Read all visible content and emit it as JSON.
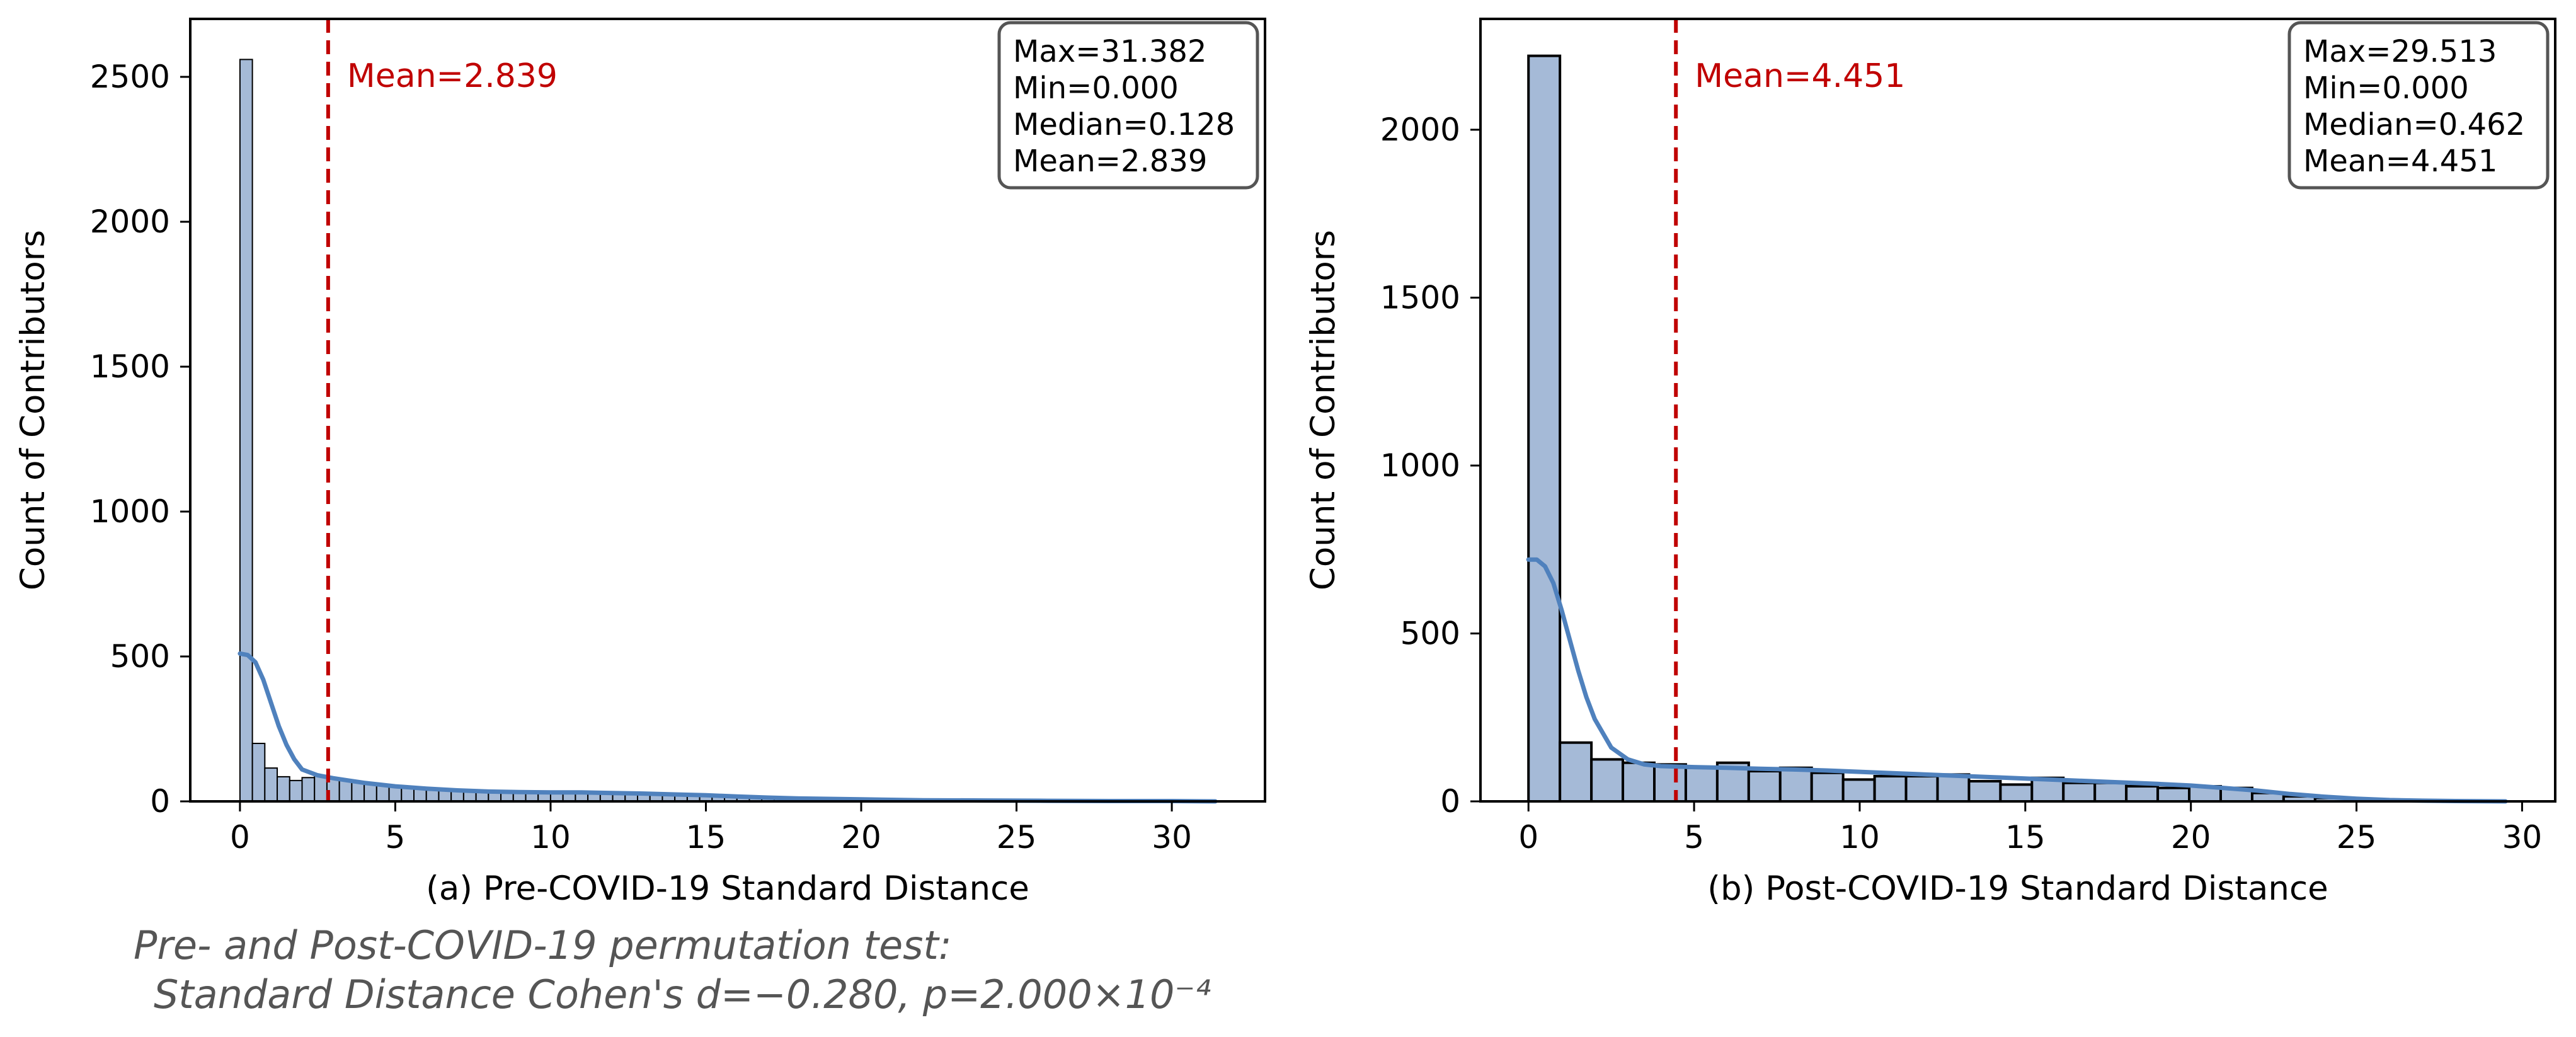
{
  "chart_data": [
    {
      "type": "histogram",
      "xlabel": "(a) Pre-COVID-19 Standard Distance",
      "ylabel": "Count of Contributors",
      "xlim": [
        -1.6,
        33
      ],
      "ylim": [
        0,
        2700
      ],
      "xticks": [
        0,
        5,
        10,
        15,
        20,
        25,
        30
      ],
      "yticks": [
        0,
        500,
        1000,
        1500,
        2000,
        2500
      ],
      "bin_width": 0.4,
      "bins": [
        {
          "start": 0.0,
          "count": 2560
        },
        {
          "start": 0.4,
          "count": 200
        },
        {
          "start": 0.8,
          "count": 115
        },
        {
          "start": 1.2,
          "count": 85
        },
        {
          "start": 1.6,
          "count": 72
        },
        {
          "start": 2.0,
          "count": 82
        },
        {
          "start": 2.4,
          "count": 88
        },
        {
          "start": 2.8,
          "count": 78
        },
        {
          "start": 3.2,
          "count": 72
        },
        {
          "start": 3.6,
          "count": 66
        },
        {
          "start": 4.0,
          "count": 60
        },
        {
          "start": 4.4,
          "count": 55
        },
        {
          "start": 4.8,
          "count": 50
        },
        {
          "start": 5.2,
          "count": 46
        },
        {
          "start": 5.6,
          "count": 43
        },
        {
          "start": 6.0,
          "count": 40
        },
        {
          "start": 6.4,
          "count": 38
        },
        {
          "start": 6.8,
          "count": 36
        },
        {
          "start": 7.2,
          "count": 34
        },
        {
          "start": 7.6,
          "count": 33
        },
        {
          "start": 8.0,
          "count": 32
        },
        {
          "start": 8.4,
          "count": 31
        },
        {
          "start": 8.8,
          "count": 30
        },
        {
          "start": 9.2,
          "count": 30
        },
        {
          "start": 9.6,
          "count": 30
        },
        {
          "start": 10.0,
          "count": 30
        },
        {
          "start": 10.4,
          "count": 30
        },
        {
          "start": 10.8,
          "count": 29
        },
        {
          "start": 11.2,
          "count": 28
        },
        {
          "start": 11.6,
          "count": 27
        },
        {
          "start": 12.0,
          "count": 26
        },
        {
          "start": 12.4,
          "count": 25
        },
        {
          "start": 12.8,
          "count": 24
        },
        {
          "start": 13.2,
          "count": 23
        },
        {
          "start": 13.6,
          "count": 22
        },
        {
          "start": 14.0,
          "count": 21
        },
        {
          "start": 14.4,
          "count": 20
        },
        {
          "start": 14.8,
          "count": 18
        },
        {
          "start": 15.2,
          "count": 17
        },
        {
          "start": 15.6,
          "count": 15
        },
        {
          "start": 16.0,
          "count": 13
        },
        {
          "start": 16.4,
          "count": 12
        },
        {
          "start": 16.8,
          "count": 10
        },
        {
          "start": 17.2,
          "count": 9
        },
        {
          "start": 17.6,
          "count": 8
        },
        {
          "start": 18.0,
          "count": 7
        },
        {
          "start": 18.4,
          "count": 6
        },
        {
          "start": 18.8,
          "count": 6
        },
        {
          "start": 19.2,
          "count": 5
        },
        {
          "start": 19.6,
          "count": 5
        },
        {
          "start": 20.0,
          "count": 4
        },
        {
          "start": 20.4,
          "count": 4
        },
        {
          "start": 20.8,
          "count": 3
        },
        {
          "start": 21.2,
          "count": 3
        },
        {
          "start": 21.6,
          "count": 3
        },
        {
          "start": 22.0,
          "count": 2
        },
        {
          "start": 22.4,
          "count": 2
        },
        {
          "start": 22.8,
          "count": 2
        },
        {
          "start": 23.2,
          "count": 2
        },
        {
          "start": 23.6,
          "count": 1
        },
        {
          "start": 24.0,
          "count": 1
        },
        {
          "start": 24.4,
          "count": 1
        },
        {
          "start": 24.8,
          "count": 1
        },
        {
          "start": 25.2,
          "count": 1
        },
        {
          "start": 25.6,
          "count": 1
        },
        {
          "start": 26.0,
          "count": 1
        },
        {
          "start": 26.4,
          "count": 1
        },
        {
          "start": 26.8,
          "count": 1
        },
        {
          "start": 27.2,
          "count": 1
        },
        {
          "start": 27.6,
          "count": 1
        },
        {
          "start": 28.0,
          "count": 1
        },
        {
          "start": 28.4,
          "count": 1
        },
        {
          "start": 28.8,
          "count": 0
        },
        {
          "start": 29.2,
          "count": 0
        },
        {
          "start": 29.6,
          "count": 0
        },
        {
          "start": 30.0,
          "count": 0
        },
        {
          "start": 30.4,
          "count": 0
        },
        {
          "start": 30.8,
          "count": 1
        }
      ],
      "kde": {
        "x": [
          0,
          0.25,
          0.5,
          0.75,
          1,
          1.25,
          1.5,
          1.75,
          2,
          2.5,
          3,
          3.5,
          4,
          5,
          6,
          7,
          8,
          9,
          10,
          11,
          12,
          13,
          14,
          15,
          16,
          17,
          18,
          20,
          22,
          24,
          26,
          28,
          30,
          31.4
        ],
        "y": [
          510,
          505,
          480,
          420,
          340,
          260,
          195,
          145,
          110,
          90,
          80,
          72,
          64,
          52,
          44,
          38,
          34,
          32,
          31,
          31,
          29,
          27,
          24,
          21,
          17,
          13,
          10,
          7,
          4,
          3,
          2,
          1,
          1,
          0
        ]
      },
      "mean_line": {
        "x": 2.839,
        "label": "Mean=2.839"
      },
      "stats": [
        "Max=31.382",
        "Min=0.000",
        "Median=0.128",
        "Mean=2.839"
      ],
      "bar_color": "#a5bad7",
      "kde_color": "#4f81bd",
      "mean_color": "#c00000"
    },
    {
      "type": "histogram",
      "xlabel": "(b) Post-COVID-19 Standard Distance",
      "ylabel": "Count of Contributors",
      "xlim": [
        -1.45,
        31
      ],
      "ylim": [
        0,
        2330
      ],
      "xticks": [
        0,
        5,
        10,
        15,
        20,
        25,
        30
      ],
      "yticks": [
        0,
        500,
        1000,
        1500,
        2000
      ],
      "bin_width": 0.95,
      "bins": [
        {
          "start": 0.0,
          "count": 2220
        },
        {
          "start": 0.95,
          "count": 175
        },
        {
          "start": 1.9,
          "count": 125
        },
        {
          "start": 2.85,
          "count": 115
        },
        {
          "start": 3.8,
          "count": 110
        },
        {
          "start": 4.75,
          "count": 100
        },
        {
          "start": 5.7,
          "count": 115
        },
        {
          "start": 6.65,
          "count": 90
        },
        {
          "start": 7.6,
          "count": 100
        },
        {
          "start": 8.55,
          "count": 85
        },
        {
          "start": 9.5,
          "count": 65
        },
        {
          "start": 10.45,
          "count": 75
        },
        {
          "start": 11.4,
          "count": 75
        },
        {
          "start": 12.35,
          "count": 80
        },
        {
          "start": 13.3,
          "count": 60
        },
        {
          "start": 14.25,
          "count": 50
        },
        {
          "start": 15.2,
          "count": 70
        },
        {
          "start": 16.15,
          "count": 55
        },
        {
          "start": 17.1,
          "count": 55
        },
        {
          "start": 18.05,
          "count": 45
        },
        {
          "start": 19.0,
          "count": 40
        },
        {
          "start": 19.95,
          "count": 45
        },
        {
          "start": 20.9,
          "count": 40
        },
        {
          "start": 21.85,
          "count": 25
        },
        {
          "start": 22.8,
          "count": 15
        },
        {
          "start": 23.75,
          "count": 10
        },
        {
          "start": 24.7,
          "count": 5
        },
        {
          "start": 25.65,
          "count": 3
        },
        {
          "start": 26.6,
          "count": 2
        },
        {
          "start": 27.55,
          "count": 1
        },
        {
          "start": 28.5,
          "count": 1
        }
      ],
      "kde": {
        "x": [
          0,
          0.25,
          0.5,
          0.75,
          1,
          1.25,
          1.5,
          1.75,
          2,
          2.5,
          3,
          3.5,
          4,
          5,
          6,
          7,
          8,
          9,
          10,
          11,
          12,
          13,
          14,
          15,
          16,
          17,
          18,
          19,
          20,
          21,
          22,
          23,
          24,
          25,
          26,
          27,
          28,
          29.5
        ],
        "y": [
          720,
          720,
          700,
          650,
          570,
          480,
          390,
          310,
          245,
          160,
          125,
          110,
          105,
          102,
          100,
          97,
          95,
          92,
          88,
          84,
          80,
          76,
          72,
          68,
          64,
          60,
          56,
          52,
          47,
          40,
          32,
          22,
          14,
          8,
          4,
          2,
          1,
          0
        ]
      },
      "mean_line": {
        "x": 4.451,
        "label": "Mean=4.451"
      },
      "stats": [
        "Max=29.513",
        "Min=0.000",
        "Median=0.462",
        "Mean=4.451"
      ],
      "bar_color": "#a5bad7",
      "kde_color": "#4f81bd",
      "mean_color": "#c00000"
    }
  ],
  "footnote": {
    "line1": "Pre- and Post-COVID-19 permutation test:",
    "line2": "Standard Distance Cohen's d=−0.280, p=2.000×10⁻⁴"
  }
}
